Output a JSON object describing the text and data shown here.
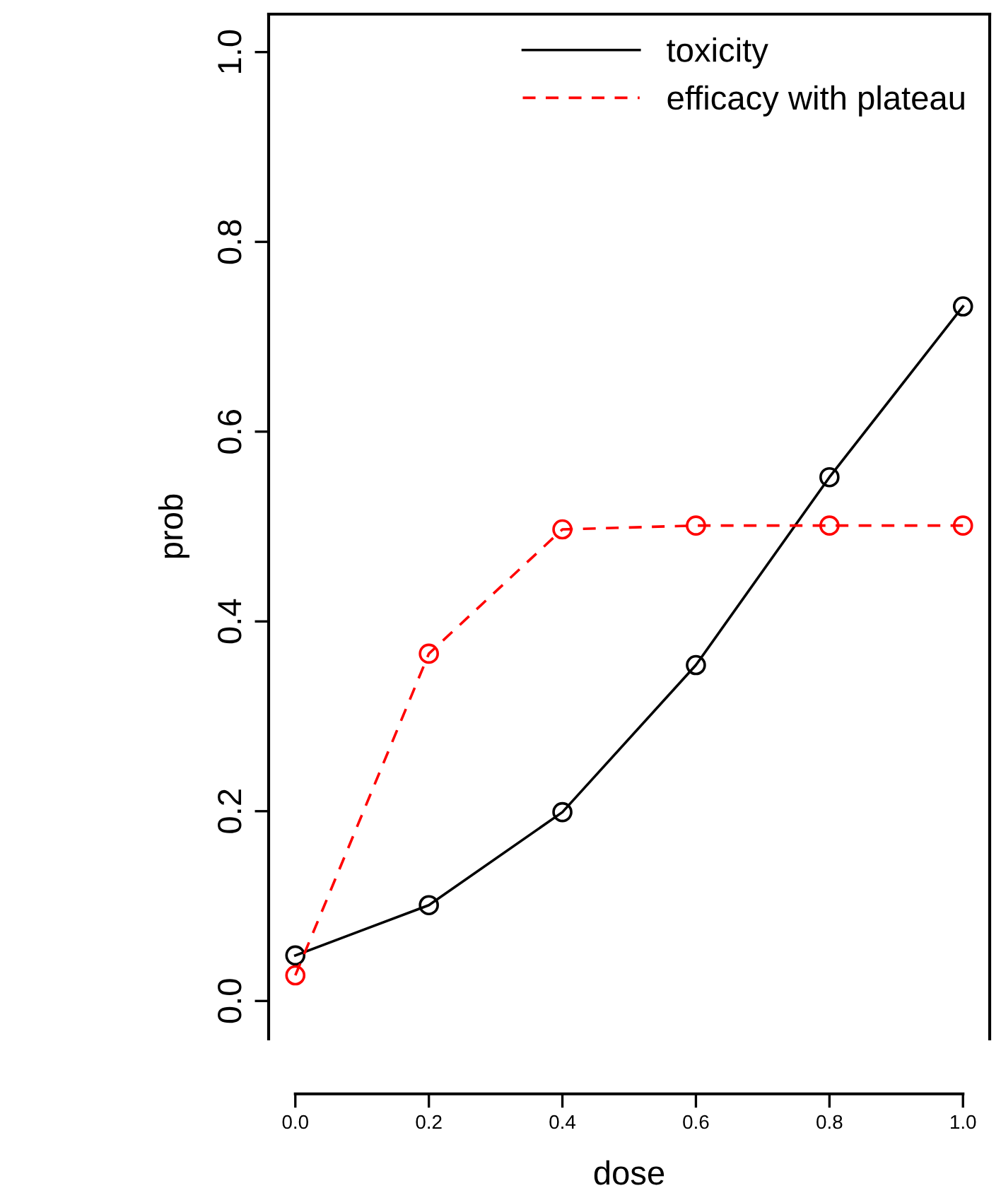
{
  "chart_data": {
    "type": "line",
    "xlabel": "dose",
    "ylabel": "prob",
    "x": [
      0.0,
      0.2,
      0.4,
      0.6,
      0.8,
      1.0
    ],
    "series": [
      {
        "name": "toxicity",
        "color": "#000000",
        "values": [
          0.048,
          0.101,
          0.199,
          0.354,
          0.552,
          0.732
        ],
        "line_style": "solid"
      },
      {
        "name": "efficacy with plateau",
        "color": "#ff0000",
        "values": [
          0.027,
          0.366,
          0.497,
          0.501,
          0.501,
          0.501
        ],
        "line_style": "dashed"
      }
    ],
    "xlim": [
      -0.04,
      1.04
    ],
    "ylim": [
      -0.04,
      1.04
    ],
    "xticks": [
      {
        "value": 0.0,
        "label": "0.0"
      },
      0.2,
      0.4,
      0.6,
      0.8,
      {
        "value": 1.0,
        "label": "1.0"
      }
    ],
    "yticks": [
      {
        "value": 0.0,
        "label": "0.0"
      },
      0.2,
      0.4,
      0.6,
      0.8,
      {
        "value": 1.0,
        "label": "1.0"
      }
    ],
    "marker": "circle",
    "legend": "top right",
    "grid": false
  }
}
